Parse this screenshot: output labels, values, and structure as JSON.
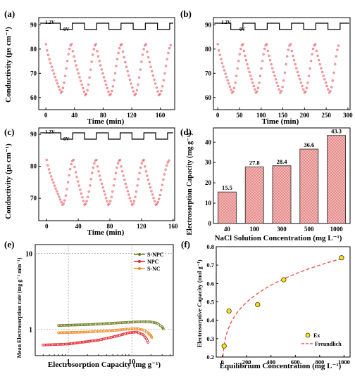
{
  "panels": {
    "a": {
      "tag": "(a)",
      "ylabel": "Conductivity (μs cm⁻¹)",
      "xlabel": "Time (min)",
      "v_high": "1.2V",
      "v_low": "0V"
    },
    "b": {
      "tag": "(b)",
      "xlabel": "Time (min)",
      "v_high": "1.2V",
      "v_low": "0V"
    },
    "c": {
      "tag": "(c)",
      "ylabel": "Conductivity (μs cm⁻¹)",
      "xlabel": "Time (min)",
      "v_high": "1.2V",
      "v_low": "0V"
    },
    "d": {
      "tag": "(d)",
      "ylabel": "Electrosorption Capacity (mg g⁻¹)",
      "xlabel": "NaCl Solution Concentration (mg L⁻¹)"
    },
    "e": {
      "tag": "(e)",
      "ylabel": "Mean Electrosorption rate (mg g⁻¹ min⁻¹)",
      "xlabel": "Electrosorption Capacity (mg g⁻¹)"
    },
    "f": {
      "tag": "(f)",
      "ylabel": "Electrosorptive Capacity (mol g⁻¹)",
      "xlabel": "Equilibrium Concentration (mg L⁻¹)"
    }
  },
  "chart_data": [
    {
      "id": "a",
      "type": "scatter",
      "xlim": [
        -10,
        180
      ],
      "ylim": [
        55,
        93
      ],
      "xticks": [
        0,
        40,
        80,
        120,
        160
      ],
      "yticks": [
        60,
        70,
        80,
        90
      ],
      "series": [
        {
          "color": "#e8575f",
          "peaks": [
            [
              0,
              82
            ],
            [
              36,
              82
            ],
            [
              70,
              82
            ],
            [
              106,
              82
            ],
            [
              140,
              82
            ],
            [
              176,
              82
            ]
          ],
          "troughs": [
            [
              21,
              62
            ],
            [
              55,
              61
            ],
            [
              89,
              61
            ],
            [
              124,
              61
            ],
            [
              158,
              61
            ]
          ]
        }
      ],
      "voltage_steps": {
        "low_start": 20,
        "period": 34,
        "low_len": 17
      }
    },
    {
      "id": "b",
      "type": "scatter",
      "xlim": [
        -10,
        305
      ],
      "ylim": [
        55,
        93
      ],
      "xticks": [
        0,
        50,
        100,
        150,
        200,
        250,
        300
      ],
      "yticks": [
        60,
        70,
        80,
        90
      ],
      "series": [
        {
          "color": "#e8575f",
          "peaks": [
            [
              0,
              82
            ],
            [
              58,
              82
            ],
            [
              113,
              82
            ],
            [
              168,
              82
            ],
            [
              225,
              82
            ],
            [
              281,
              82
            ]
          ],
          "troughs": [
            [
              33,
              62
            ],
            [
              88,
              62
            ],
            [
              144,
              62
            ],
            [
              200,
              62
            ],
            [
              257,
              62
            ]
          ]
        }
      ],
      "voltage_steps": {
        "low_start": 30,
        "period": 56,
        "low_len": 28
      }
    },
    {
      "id": "c",
      "type": "scatter",
      "xlim": [
        -10,
        162
      ],
      "ylim": [
        63,
        92
      ],
      "xticks": [
        0,
        40,
        80,
        120,
        160
      ],
      "yticks": [
        70,
        80,
        90
      ],
      "series": [
        {
          "color": "#e8575f",
          "peaks": [
            [
              0,
              82
            ],
            [
              34,
              82
            ],
            [
              63,
              82
            ],
            [
              93,
              82
            ],
            [
              123,
              82
            ],
            [
              156,
              82
            ]
          ],
          "troughs": [
            [
              20,
              68
            ],
            [
              48,
              68
            ],
            [
              78,
              68
            ],
            [
              108,
              68
            ],
            [
              138,
              68
            ]
          ]
        }
      ],
      "voltage_steps": {
        "low_start": 18,
        "period": 30,
        "low_len": 15
      }
    },
    {
      "id": "d",
      "type": "bar",
      "categories": [
        "40",
        "100",
        "300",
        "500",
        "1000"
      ],
      "values": [
        15.5,
        27.8,
        28.4,
        36.6,
        43.3
      ],
      "value_labels": [
        "15.5",
        "27.8",
        "28.4",
        "36.6",
        "43.3"
      ],
      "ylim": [
        0,
        47
      ],
      "yticks": [
        0,
        10,
        20,
        30,
        40
      ],
      "bar_color": "#f6b6b6",
      "edge_color": "#c0504d"
    },
    {
      "id": "e",
      "type": "line",
      "x_scale": "log",
      "y_scale": "log",
      "xlim": [
        0.3,
        45
      ],
      "ylim": [
        0.45,
        13
      ],
      "xtick_labels": [
        "1",
        "10"
      ],
      "ytick_labels": [
        "1",
        "10"
      ],
      "legend_position": "top-right",
      "series": [
        {
          "name": "S-NPC",
          "color": "#6b7a1f",
          "points": [
            [
              0.7,
              1.12
            ],
            [
              2,
              1.15
            ],
            [
              5,
              1.2
            ],
            [
              10,
              1.24
            ],
            [
              15,
              1.26
            ],
            [
              20,
              1.25
            ],
            [
              25,
              1.2
            ],
            [
              30,
              1.08
            ],
            [
              32,
              0.98
            ]
          ]
        },
        {
          "name": "NPC",
          "color": "#e0232e",
          "points": [
            [
              0.4,
              0.62
            ],
            [
              1,
              0.64
            ],
            [
              3,
              0.72
            ],
            [
              6,
              0.82
            ],
            [
              9,
              0.9
            ],
            [
              12,
              0.92
            ],
            [
              15,
              0.85
            ],
            [
              17,
              0.75
            ],
            [
              18.5,
              0.64
            ]
          ]
        },
        {
          "name": "S-NC",
          "color": "#f08a24",
          "points": [
            [
              0.7,
              0.9
            ],
            [
              2,
              0.92
            ],
            [
              5,
              0.96
            ],
            [
              8,
              1.0
            ],
            [
              12,
              1.02
            ],
            [
              15,
              0.98
            ],
            [
              18,
              0.9
            ],
            [
              20,
              0.82
            ],
            [
              21,
              0.76
            ]
          ]
        }
      ]
    },
    {
      "id": "f",
      "type": "scatter",
      "xlim": [
        -50,
        1050
      ],
      "ylim": [
        0.2,
        0.8
      ],
      "xticks": [
        0,
        200,
        400,
        600,
        800,
        1000
      ],
      "yticks": [
        0.2,
        0.3,
        0.4,
        0.5,
        0.6,
        0.7,
        0.8
      ],
      "legend_position": "bottom-right",
      "series": [
        {
          "name": "Ex",
          "color": "#ffe600",
          "points": [
            [
              15,
              0.26
            ],
            [
              55,
              0.45
            ],
            [
              290,
              0.485
            ],
            [
              505,
              0.62
            ],
            [
              980,
              0.74
            ]
          ]
        },
        {
          "name": "Freundlich",
          "color": "#e8574a",
          "style": "dashed",
          "fit": {
            "K": 0.136,
            "n": 0.245
          }
        }
      ]
    }
  ]
}
